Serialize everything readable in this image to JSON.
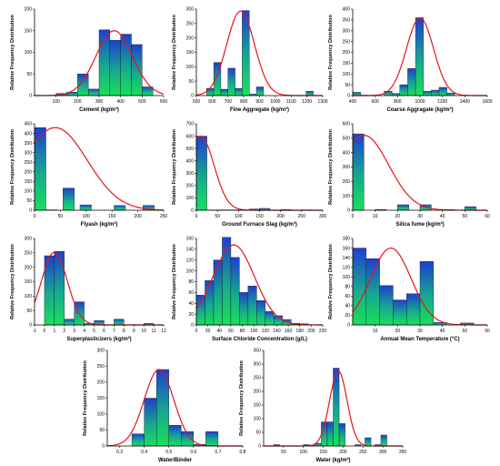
{
  "chart_data": [
    {
      "type": "bar",
      "xlabel": "Cement (kg/m³)",
      "ylabel": "Relative Frequency Distribution",
      "xlim": [
        0,
        600
      ],
      "xticks": [
        100,
        200,
        300,
        400,
        500,
        600
      ],
      "ylim": [
        0,
        200
      ],
      "yticks": [
        0,
        50,
        100,
        150,
        200
      ],
      "bins": [
        [
          100,
          150,
          5
        ],
        [
          150,
          200,
          8
        ],
        [
          200,
          250,
          50
        ],
        [
          250,
          300,
          15
        ],
        [
          300,
          350,
          152
        ],
        [
          350,
          400,
          128
        ],
        [
          400,
          450,
          142
        ],
        [
          450,
          500,
          118
        ],
        [
          500,
          550,
          20
        ]
      ],
      "normal": {
        "mean": 370,
        "sd": 85,
        "peak": 150
      }
    },
    {
      "type": "bar",
      "xlabel": "Fine Aggregate (kg/m³)",
      "ylabel": "Relative Frequency Distribution",
      "xlim": [
        500,
        1300
      ],
      "xticks": [
        500,
        600,
        700,
        800,
        900,
        1000,
        1100,
        1200,
        1300
      ],
      "ylim": [
        0,
        300
      ],
      "yticks": [
        0,
        50,
        100,
        150,
        200,
        250,
        300
      ],
      "bins": [
        [
          565,
          610,
          25
        ],
        [
          610,
          655,
          115
        ],
        [
          655,
          700,
          22
        ],
        [
          700,
          745,
          95
        ],
        [
          745,
          790,
          25
        ],
        [
          790,
          835,
          295
        ],
        [
          835,
          880,
          5
        ],
        [
          880,
          925,
          30
        ],
        [
          1195,
          1240,
          15
        ]
      ],
      "normal": {
        "mean": 780,
        "sd": 88,
        "peak": 293
      }
    },
    {
      "type": "bar",
      "xlabel": "Coarse Aggragate (kg/m³)",
      "ylabel": "Relative Frequency Distribution",
      "xlim": [
        400,
        1600
      ],
      "xticks": [
        400,
        600,
        800,
        1000,
        1200,
        1400,
        1600
      ],
      "ylim": [
        0,
        400
      ],
      "yticks": [
        0,
        50,
        100,
        150,
        200,
        250,
        300,
        350,
        400
      ],
      "bins": [
        [
          400,
          470,
          15
        ],
        [
          470,
          540,
          2
        ],
        [
          680,
          750,
          20
        ],
        [
          750,
          820,
          10
        ],
        [
          820,
          890,
          50
        ],
        [
          890,
          960,
          125
        ],
        [
          960,
          1030,
          360
        ],
        [
          1030,
          1100,
          20
        ],
        [
          1100,
          1170,
          25
        ],
        [
          1170,
          1240,
          38
        ],
        [
          1240,
          1310,
          12
        ]
      ],
      "normal": {
        "mean": 1000,
        "sd": 120,
        "peak": 360
      }
    },
    {
      "type": "bar",
      "xlabel": "Flyash (kg/m³)",
      "ylabel": "Relative Frequency Distribution",
      "xlim": [
        0,
        250
      ],
      "xticks": [
        0,
        50,
        100,
        150,
        200,
        250
      ],
      "ylim": [
        0,
        450
      ],
      "yticks": [
        0,
        50,
        100,
        150,
        200,
        250,
        300,
        350,
        400,
        450
      ],
      "bins": [
        [
          0,
          22,
          430
        ],
        [
          22,
          44,
          2
        ],
        [
          55,
          77,
          115
        ],
        [
          88,
          110,
          28
        ],
        [
          154,
          176,
          25
        ],
        [
          210,
          232,
          25
        ]
      ],
      "normal": {
        "mean": 40,
        "sd": 62,
        "peak": 430
      }
    },
    {
      "type": "bar",
      "xlabel": "Ground Furnace Slag (kg/m³)",
      "ylabel": "Relative Frequency Distribution",
      "xlim": [
        0,
        300
      ],
      "xticks": [
        0,
        50,
        100,
        150,
        200,
        250,
        300
      ],
      "ylim": [
        0,
        700
      ],
      "yticks": [
        0,
        100,
        200,
        300,
        400,
        500,
        600,
        700
      ],
      "bins": [
        [
          0,
          25,
          600
        ],
        [
          25,
          50,
          2
        ],
        [
          50,
          75,
          3
        ],
        [
          75,
          100,
          3
        ],
        [
          100,
          125,
          2
        ],
        [
          125,
          150,
          10
        ],
        [
          150,
          175,
          15
        ],
        [
          200,
          225,
          5
        ],
        [
          250,
          275,
          3
        ]
      ],
      "normal": {
        "mean": 10,
        "sd": 32,
        "peak": 600
      }
    },
    {
      "type": "bar",
      "xlabel": "Silica fume (kg/m³)",
      "ylabel": "Relative Frequency Distribution",
      "xlim": [
        0,
        60
      ],
      "xticks": [
        0,
        10,
        20,
        30,
        40,
        50,
        60
      ],
      "ylim": [
        0,
        600
      ],
      "yticks": [
        0,
        100,
        200,
        300,
        400,
        500,
        600
      ],
      "bins": [
        [
          0,
          5,
          530
        ],
        [
          10,
          15,
          5
        ],
        [
          20,
          25,
          38
        ],
        [
          30,
          35,
          38
        ],
        [
          40,
          45,
          5
        ],
        [
          50,
          55,
          25
        ]
      ],
      "normal": {
        "mean": 5,
        "sd": 11,
        "peak": 520
      }
    },
    {
      "type": "bar",
      "xlabel": "Superplasticizers (kg/m³)",
      "ylabel": "Relative Frequency Distribution",
      "xlim": [
        -1,
        12
      ],
      "xticks": [
        -1,
        0,
        1,
        2,
        3,
        4,
        5,
        6,
        7,
        8,
        9,
        10,
        11,
        12
      ],
      "ylim": [
        0,
        300
      ],
      "yticks": [
        0,
        50,
        100,
        150,
        200,
        250,
        300
      ],
      "bins": [
        [
          0,
          1,
          240
        ],
        [
          1,
          2,
          255
        ],
        [
          2,
          3,
          20
        ],
        [
          3,
          4,
          80
        ],
        [
          4,
          5,
          5
        ],
        [
          5,
          6,
          15
        ],
        [
          7,
          8,
          20
        ],
        [
          10,
          11,
          5
        ]
      ],
      "normal": {
        "mean": 1,
        "sd": 1.3,
        "peak": 252
      }
    },
    {
      "type": "bar",
      "xlabel": "Surface Chloride Concentration (g/L)",
      "ylabel": "Relative Frequency Distribution",
      "xlim": [
        0,
        220
      ],
      "xticks": [
        0,
        20,
        40,
        60,
        80,
        100,
        120,
        140,
        160,
        180,
        200,
        220
      ],
      "ylim": [
        0,
        160
      ],
      "yticks": [
        0,
        20,
        40,
        60,
        80,
        100,
        120,
        140,
        160
      ],
      "bins": [
        [
          0,
          15,
          55
        ],
        [
          15,
          30,
          82
        ],
        [
          30,
          45,
          120
        ],
        [
          45,
          60,
          162
        ],
        [
          60,
          75,
          125
        ],
        [
          75,
          90,
          60
        ],
        [
          90,
          105,
          72
        ],
        [
          105,
          120,
          45
        ],
        [
          120,
          135,
          25
        ],
        [
          135,
          150,
          17
        ],
        [
          150,
          165,
          10
        ],
        [
          165,
          180,
          3
        ],
        [
          180,
          195,
          2
        ]
      ],
      "normal": {
        "mean": 65,
        "sd": 36,
        "peak": 148
      }
    },
    {
      "type": "bar",
      "xlabel": "Annual Mean Temperature (°C)",
      "ylabel": "Relative Frequency Distribution",
      "xlim": [
        0,
        60
      ],
      "xticks": [
        10,
        20,
        30,
        40,
        50,
        60
      ],
      "ylim": [
        0,
        180
      ],
      "yticks": [
        0,
        20,
        40,
        60,
        80,
        100,
        120,
        140,
        160,
        180
      ],
      "bins": [
        [
          0,
          6,
          160
        ],
        [
          6,
          12,
          138
        ],
        [
          12,
          18,
          82
        ],
        [
          18,
          24,
          52
        ],
        [
          24,
          30,
          65
        ],
        [
          30,
          36,
          132
        ],
        [
          36,
          42,
          5
        ],
        [
          48,
          54,
          4
        ]
      ],
      "normal": {
        "mean": 17,
        "sd": 9,
        "peak": 160
      }
    },
    {
      "type": "bar",
      "xlabel": "Water/Binder",
      "ylabel": "Relative Frequency Distribution",
      "xlim": [
        0.25,
        0.8
      ],
      "xticks": [
        0.3,
        0.4,
        0.5,
        0.6,
        0.7,
        0.8
      ],
      "ylim": [
        0,
        300
      ],
      "yticks": [
        0,
        50,
        100,
        150,
        200,
        250,
        300
      ],
      "bins": [
        [
          0.35,
          0.4,
          38
        ],
        [
          0.4,
          0.45,
          150
        ],
        [
          0.45,
          0.5,
          240
        ],
        [
          0.5,
          0.55,
          65
        ],
        [
          0.55,
          0.6,
          45
        ],
        [
          0.6,
          0.65,
          5
        ],
        [
          0.65,
          0.7,
          45
        ]
      ],
      "normal": {
        "mean": 0.46,
        "sd": 0.06,
        "peak": 240
      }
    },
    {
      "type": "bar",
      "xlabel": "Water (kg/m³)",
      "ylabel": "Relative Frequency Distribution",
      "xlim": [
        0,
        350
      ],
      "xticks": [
        50,
        100,
        150,
        200,
        250,
        300,
        350
      ],
      "ylim": [
        0,
        350
      ],
      "yticks": [
        0,
        50,
        100,
        150,
        200,
        250,
        300,
        350
      ],
      "bins": [
        [
          25,
          40,
          5
        ],
        [
          100,
          115,
          5
        ],
        [
          115,
          130,
          2
        ],
        [
          130,
          145,
          10
        ],
        [
          145,
          160,
          88
        ],
        [
          160,
          175,
          88
        ],
        [
          175,
          190,
          285
        ],
        [
          190,
          205,
          82
        ],
        [
          230,
          245,
          5
        ],
        [
          255,
          270,
          30
        ],
        [
          280,
          295,
          5
        ],
        [
          295,
          310,
          40
        ]
      ],
      "normal": {
        "mean": 188,
        "sd": 22,
        "peak": 275
      }
    }
  ]
}
